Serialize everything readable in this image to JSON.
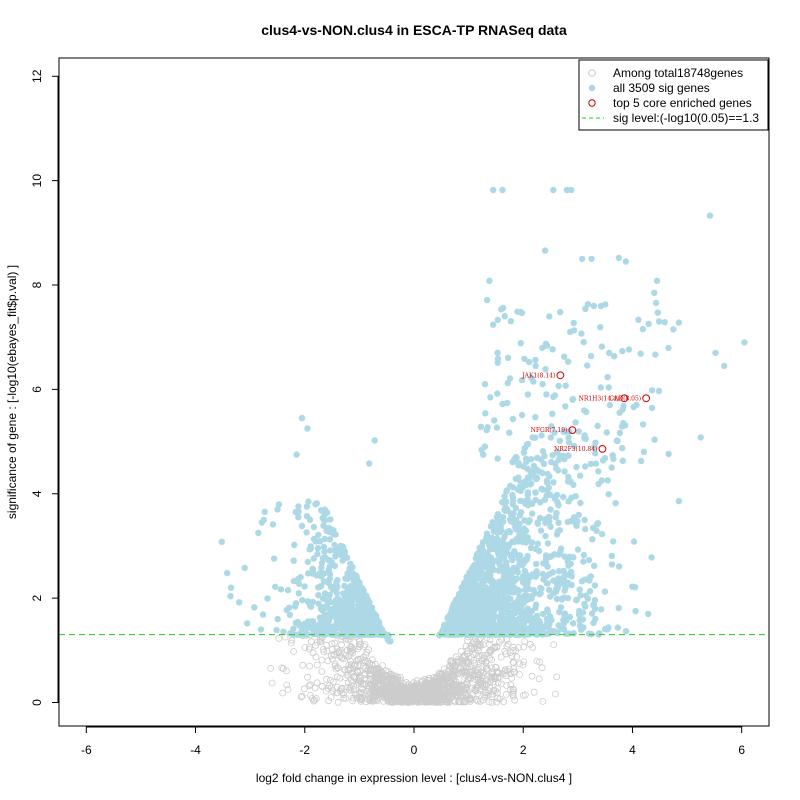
{
  "chart_data": {
    "type": "scatter",
    "title": "clus4-vs-NON.clus4 in ESCA-TP RNASeq data",
    "xlabel": "log2 fold change in expression level : [clus4-vs-NON.clus4 ]",
    "ylabel": "significance of gene : [-log10(ebayes_fit$p.val) ]",
    "xlim": [
      -6.5,
      6.5
    ],
    "ylim": [
      -0.45,
      12.35
    ],
    "xticks": [
      -6,
      -4,
      -2,
      0,
      2,
      4,
      6
    ],
    "yticks": [
      0,
      2,
      4,
      6,
      8,
      10,
      12
    ],
    "grid": false,
    "legend_placement": "top-right",
    "sig_threshold": 1.3,
    "colors": {
      "nonsig": "#cccccc",
      "sig": "#add8e6",
      "core": "#cc0000",
      "threshold": "#22cc22"
    },
    "legend": [
      {
        "label": "Among total18748genes",
        "marker": "open-circle",
        "color": "#cccccc"
      },
      {
        "label": "all 3509 sig genes",
        "marker": "filled-circle",
        "color": "#add8e6"
      },
      {
        "label": "top 5 core enriched genes",
        "marker": "open-circle",
        "color": "#cc0000"
      },
      {
        "label": "sig level:(-log10(0.05)==1.3",
        "marker": "dashed-line",
        "color": "#22cc22"
      }
    ],
    "core_genes": [
      {
        "label": "JAK1(8.14)",
        "x": 2.68,
        "y": 6.27
      },
      {
        "label": "NR1H3(14.4)",
        "x": 3.85,
        "y": 5.83
      },
      {
        "label": "CAD(8.05)",
        "x": 4.25,
        "y": 5.83
      },
      {
        "label": "NFGR(7.19)",
        "x": 2.9,
        "y": 5.22
      },
      {
        "label": "NR2F3(10.84)",
        "x": 3.45,
        "y": 4.86
      }
    ],
    "highlight_sig_points": [
      [
        1.45,
        9.82
      ],
      [
        1.62,
        9.82
      ],
      [
        2.55,
        9.82
      ],
      [
        2.8,
        9.82
      ],
      [
        2.88,
        9.82
      ],
      [
        5.42,
        9.33
      ],
      [
        2.4,
        8.66
      ],
      [
        3.08,
        8.5
      ],
      [
        3.25,
        8.5
      ],
      [
        3.75,
        8.52
      ],
      [
        3.88,
        8.45
      ],
      [
        1.38,
        8.08
      ],
      [
        4.45,
        8.08
      ],
      [
        6.05,
        6.9
      ],
      [
        5.52,
        6.7
      ],
      [
        5.68,
        6.45
      ],
      [
        4.85,
        7.28
      ],
      [
        4.75,
        7.15
      ],
      [
        4.4,
        7.85
      ],
      [
        5.25,
        5.08
      ],
      [
        4.85,
        3.86
      ],
      [
        4.35,
        2.78
      ],
      [
        3.1,
        2.7
      ],
      [
        -2.05,
        5.45
      ],
      [
        -1.95,
        5.25
      ],
      [
        -2.15,
        4.75
      ],
      [
        -0.72,
        5.02
      ],
      [
        -0.82,
        4.58
      ],
      [
        -3.52,
        3.08
      ],
      [
        -3.42,
        2.48
      ],
      [
        -3.35,
        2.2
      ],
      [
        -2.75,
        3.5
      ],
      [
        -2.85,
        3.25
      ],
      [
        -3.1,
        2.58
      ],
      [
        -3.2,
        1.92
      ]
    ]
  }
}
